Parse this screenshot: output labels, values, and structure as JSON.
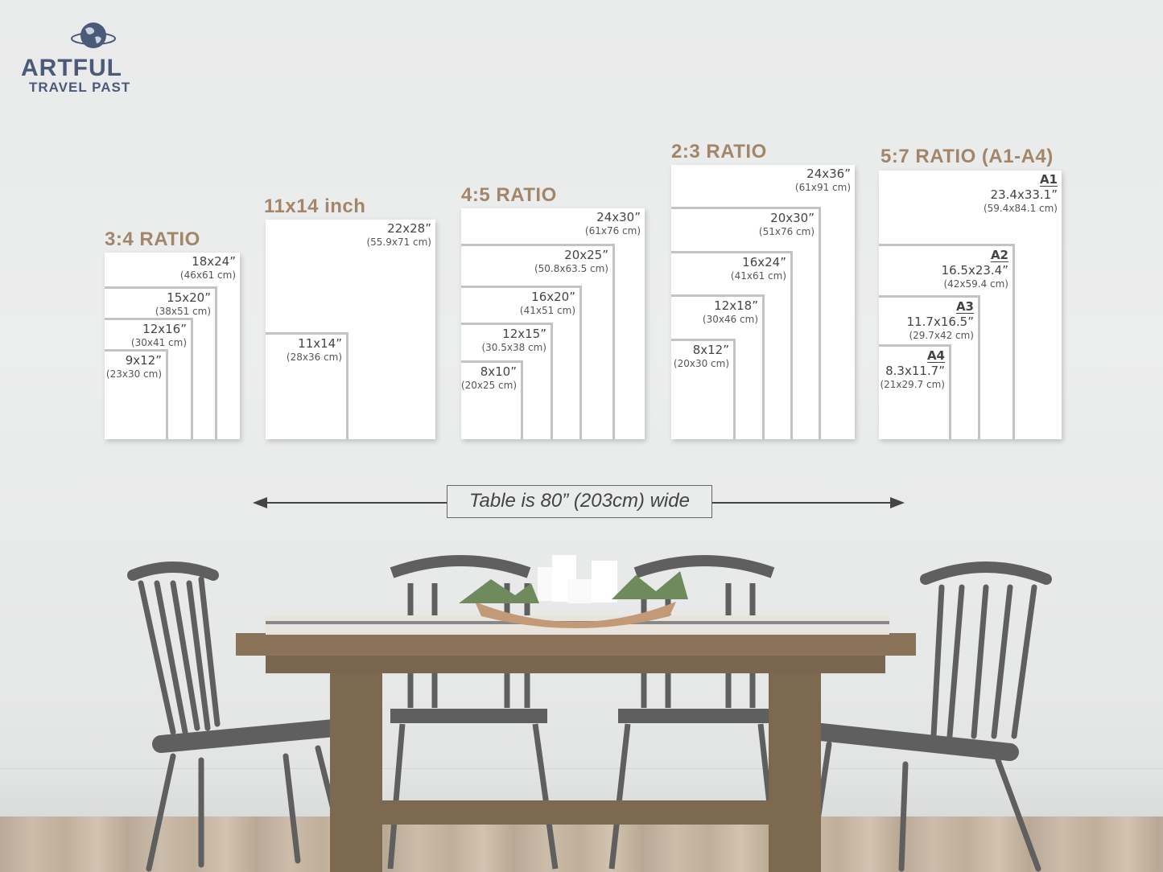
{
  "logo": {
    "line1": "ARTFUL",
    "line2": "TRAVEL PAST",
    "icon": "globe-icon",
    "color": "#4a5a78"
  },
  "title_color": "#a2866a",
  "groups": [
    {
      "title": "3:4 RATIO",
      "sizes": [
        {
          "inch": "18x24”",
          "cm": "(46x61 cm)"
        },
        {
          "inch": "15x20”",
          "cm": "(38x51 cm)"
        },
        {
          "inch": "12x16”",
          "cm": "(30x41 cm)"
        },
        {
          "inch": "9x12”",
          "cm": "(23x30 cm)"
        }
      ]
    },
    {
      "title": "11x14 inch",
      "sizes": [
        {
          "inch": "22x28”",
          "cm": "(55.9x71 cm)"
        },
        {
          "inch": "11x14”",
          "cm": "(28x36 cm)"
        }
      ]
    },
    {
      "title": "4:5 RATIO",
      "sizes": [
        {
          "inch": "24x30”",
          "cm": "(61x76 cm)"
        },
        {
          "inch": "20x25”",
          "cm": "(50.8x63.5 cm)"
        },
        {
          "inch": "16x20”",
          "cm": "(41x51 cm)"
        },
        {
          "inch": "12x15”",
          "cm": "(30.5x38 cm)"
        },
        {
          "inch": "8x10”",
          "cm": "(20x25 cm)"
        }
      ]
    },
    {
      "title": "2:3 RATIO",
      "sizes": [
        {
          "inch": "24x36”",
          "cm": "(61x91 cm)"
        },
        {
          "inch": "20x30”",
          "cm": "(51x76 cm)"
        },
        {
          "inch": "16x24”",
          "cm": "(41x61 cm)"
        },
        {
          "inch": "12x18”",
          "cm": "(30x46 cm)"
        },
        {
          "inch": "8x12”",
          "cm": "(20x30 cm)"
        }
      ]
    },
    {
      "title": "5:7 RATIO (A1-A4)",
      "sizes": [
        {
          "label": "A1",
          "inch": "23.4x33.1”",
          "cm": "(59.4x84.1 cm)"
        },
        {
          "label": "A2",
          "inch": "16.5x23.4”",
          "cm": "(42x59.4 cm)"
        },
        {
          "label": "A3",
          "inch": "11.7x16.5”",
          "cm": "(29.7x42 cm)"
        },
        {
          "label": "A4",
          "inch": "8.3x11.7”",
          "cm": "(21x29.7 cm)"
        }
      ]
    }
  ],
  "table_note": "Table is 80” (203cm) wide"
}
